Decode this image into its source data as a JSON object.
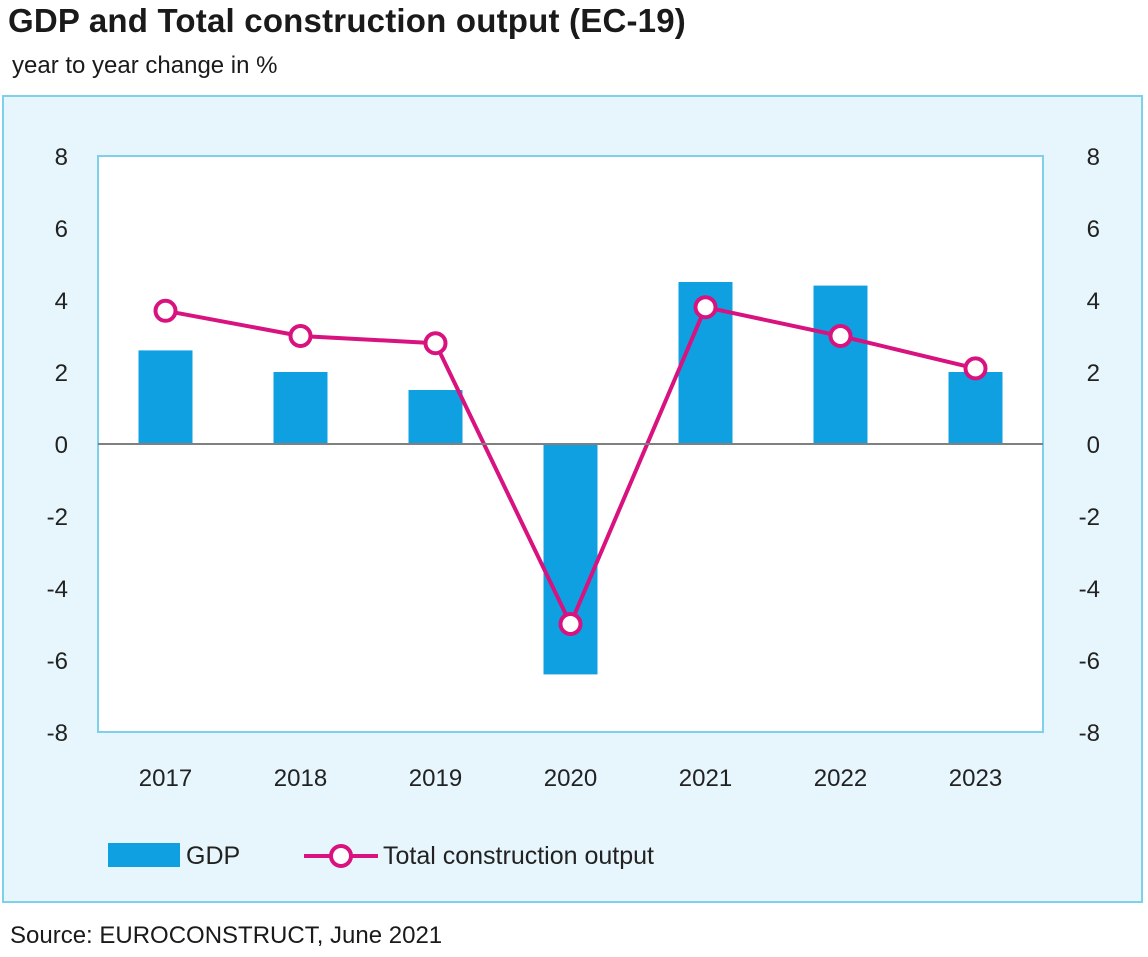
{
  "header": {
    "title": "GDP and Total construction output (EC-19)",
    "subtitle": "year to year change in %"
  },
  "footer": {
    "source": "Source: EUROCONSTRUCT, June 2021"
  },
  "colors": {
    "gdp_bar": "#0fa0e2",
    "construction_line": "#d8127e",
    "frame_border": "#7fd0ea",
    "frame_background": "#e6f6fc",
    "plot_background": "#ffffff",
    "zero_line": "#808080"
  },
  "chart_data": {
    "type": "bar",
    "categories": [
      "2017",
      "2018",
      "2019",
      "2020",
      "2021",
      "2022",
      "2023"
    ],
    "series": [
      {
        "name": "GDP",
        "type": "bar",
        "axis": "left",
        "values": [
          2.6,
          2.0,
          1.5,
          -6.4,
          4.5,
          4.4,
          2.0
        ]
      },
      {
        "name": "Total construction output",
        "type": "line",
        "axis": "right",
        "values": [
          3.7,
          3.0,
          2.8,
          -5.0,
          3.8,
          3.0,
          2.1
        ]
      }
    ],
    "ylim": [
      -8,
      8
    ],
    "yticks": [
      "8",
      "6",
      "4",
      "2",
      "0",
      "-2",
      "-4",
      "-6",
      "-8"
    ],
    "y2lim": [
      -8,
      8
    ],
    "y2ticks": [
      "8",
      "6",
      "4",
      "2",
      "0",
      "-2",
      "-4",
      "-6",
      "-8"
    ],
    "grid": false,
    "legend": "bottom"
  }
}
